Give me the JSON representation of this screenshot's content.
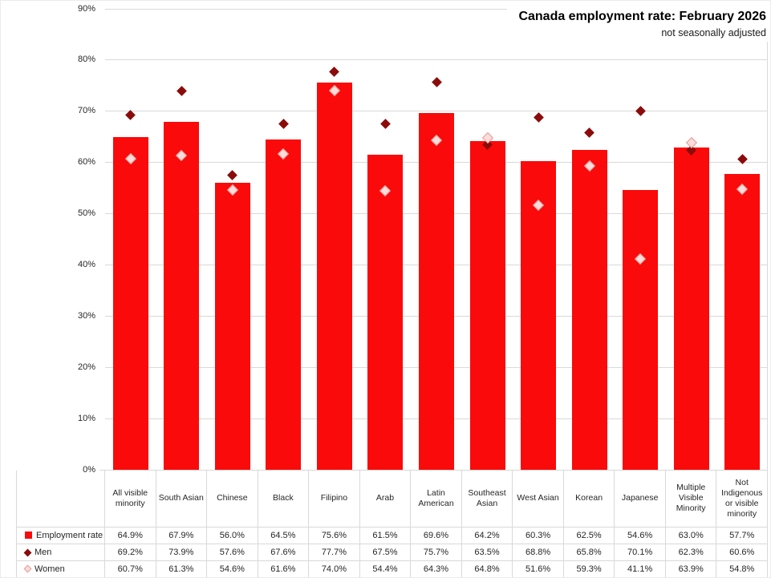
{
  "chart_data": {
    "type": "bar",
    "title": "Canada employment rate: February 2026",
    "subtitle": "not seasonally adjusted",
    "categories": [
      "All visible minority",
      "South Asian",
      "Chinese",
      "Black",
      "Filipino",
      "Arab",
      "Latin American",
      "Southeast Asian",
      "West Asian",
      "Korean",
      "Japanese",
      "Multiple Visible Minority",
      "Not Indigenous or visible minority"
    ],
    "series": [
      {
        "name": "Employment rate",
        "type": "bar",
        "marker": "square",
        "color": "#fa0a0a",
        "values": [
          64.9,
          67.9,
          56.0,
          64.5,
          75.6,
          61.5,
          69.6,
          64.2,
          60.3,
          62.5,
          54.6,
          63.0,
          57.7
        ]
      },
      {
        "name": "Men",
        "type": "scatter",
        "marker": "diamond-filled",
        "color": "#8b0b0b",
        "values": [
          69.2,
          73.9,
          57.6,
          67.6,
          77.7,
          67.5,
          75.7,
          63.5,
          68.8,
          65.8,
          70.1,
          62.3,
          60.6
        ]
      },
      {
        "name": "Women",
        "type": "scatter",
        "marker": "diamond-open",
        "color": "#fadcda",
        "stroke": "#e39d98",
        "values": [
          60.7,
          61.3,
          54.6,
          61.6,
          74.0,
          54.4,
          64.3,
          64.8,
          51.6,
          59.3,
          41.1,
          63.9,
          54.8
        ]
      }
    ],
    "xlabel": "",
    "ylabel": "",
    "ylim": [
      0,
      90
    ],
    "ytick_step": 10,
    "ytick_suffix": "%",
    "value_suffix": "%",
    "value_decimals": 1,
    "grid": true,
    "legend_position": "table-left"
  },
  "colors": {
    "bar": "#fa0a0a",
    "men": "#8b0b0b",
    "women_fill": "#fadcda",
    "women_stroke": "#e39d98",
    "gridline": "#d9d9d9",
    "table_border": "#d9d9d9",
    "text": "#262626",
    "title": "#000000"
  }
}
